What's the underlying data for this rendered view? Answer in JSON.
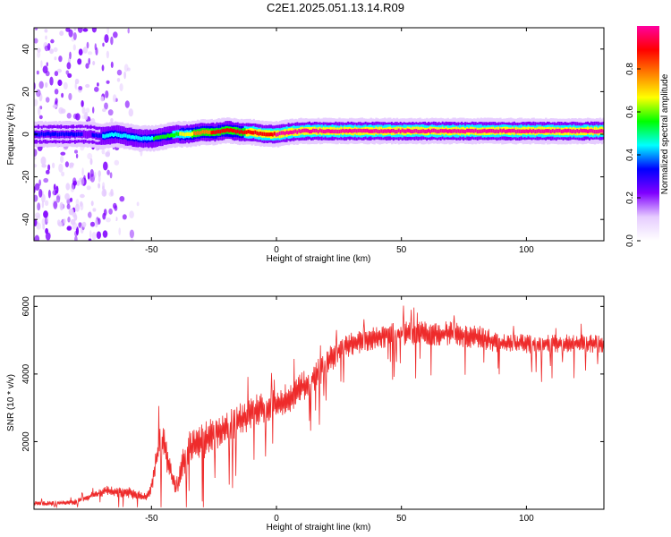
{
  "title": "C2E1.2025.051.13.14.R09",
  "chart_data": [
    {
      "type": "heatmap",
      "xlabel": "Height of straight line (km)",
      "ylabel": "Frequency (Hz)",
      "xlim": [
        -97,
        131
      ],
      "ylim": [
        -50,
        50
      ],
      "xticks": [
        -50,
        0,
        50,
        100
      ],
      "yticks": [
        -40,
        -20,
        0,
        20,
        40
      ],
      "grid": false,
      "ridge": {
        "x": [
          -97,
          -85,
          -75,
          -70,
          -65,
          -60,
          -55,
          -50,
          -45,
          -40,
          -35,
          -30,
          -25,
          -20,
          -15,
          -10,
          -5,
          0,
          5,
          10,
          40,
          80,
          131
        ],
        "frequency": [
          0,
          0,
          0,
          -1,
          0,
          -1,
          -2,
          -2,
          -1,
          0,
          0,
          1,
          1,
          2,
          1,
          1,
          0,
          0,
          1,
          1.5,
          1.5,
          1.5,
          1.5
        ],
        "amplitude": [
          0.3,
          0.35,
          0.25,
          0.4,
          0.45,
          0.45,
          0.45,
          0.5,
          0.5,
          0.6,
          0.7,
          0.8,
          0.85,
          0.85,
          0.85,
          0.9,
          0.9,
          0.95,
          0.95,
          1.0,
          1.0,
          1.0,
          1.0
        ]
      },
      "noise_region_x": [
        -97,
        -75
      ],
      "colorbar": {
        "label": "Normalized spectral amplitude",
        "range": [
          0,
          1
        ],
        "ticks": [
          "0.0",
          "0.2",
          "0.4",
          "0.6",
          "0.8"
        ],
        "colormap": [
          "#ffffff",
          "#e6ccff",
          "#8000ff",
          "#0000ff",
          "#00ffff",
          "#00ff00",
          "#ffff00",
          "#ff8000",
          "#ff0000",
          "#ff00a0"
        ]
      }
    },
    {
      "type": "line",
      "xlabel": "Height of straight line (km)",
      "ylabel": "SNR (10 * v/v)",
      "xlim": [
        -97,
        131
      ],
      "ylim": [
        0,
        6300
      ],
      "xticks": [
        -50,
        0,
        50,
        100
      ],
      "yticks": [
        2000,
        4000,
        6000
      ],
      "grid": false,
      "series": [
        {
          "color": "#ee2b2b",
          "x": [
            -97,
            -90,
            -80,
            -72,
            -68,
            -60,
            -55,
            -52,
            -50,
            -47,
            -45,
            -43,
            -40,
            -38,
            -35,
            -30,
            -25,
            -20,
            -15,
            -10,
            -5,
            0,
            5,
            10,
            15,
            20,
            25,
            30,
            35,
            40,
            50,
            60,
            70,
            80,
            85,
            90,
            95,
            100,
            110,
            120,
            131
          ],
          "y": [
            170,
            170,
            220,
            450,
            550,
            500,
            420,
            350,
            700,
            1900,
            1900,
            1300,
            500,
            1300,
            1800,
            2000,
            2200,
            2400,
            2600,
            2900,
            3000,
            3100,
            3300,
            3600,
            3900,
            4300,
            4700,
            4900,
            5000,
            5100,
            5200,
            5200,
            5200,
            5100,
            5000,
            4900,
            4900,
            4900,
            4900,
            4900,
            4900
          ],
          "amplitude": [
            120,
            120,
            150,
            200,
            250,
            300,
            250,
            200,
            400,
            900,
            900,
            700,
            350,
            700,
            900,
            900,
            900,
            900,
            850,
            850,
            800,
            800,
            750,
            750,
            700,
            700,
            650,
            600,
            600,
            600,
            600,
            600,
            600,
            600,
            550,
            500,
            500,
            500,
            500,
            450,
            450
          ]
        }
      ]
    }
  ]
}
